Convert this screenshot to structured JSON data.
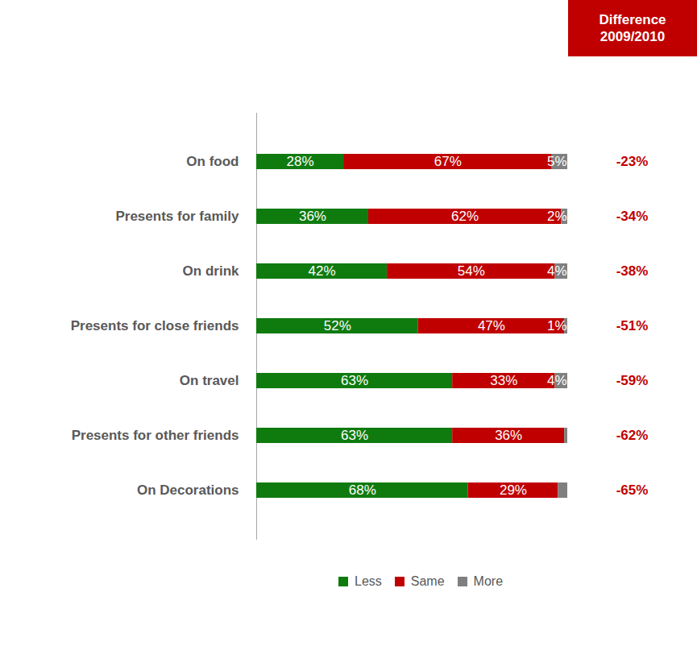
{
  "chart_data": {
    "type": "bar",
    "orientation": "horizontal",
    "stacked": true,
    "data_labels": true,
    "tick_labels": "y",
    "legend": "bottom",
    "categories": [
      "On food",
      "Presents for family",
      "On drink",
      "Presents for close friends",
      "On travel",
      "Presents for other friends",
      "On Decorations"
    ],
    "xlim": [
      0,
      100
    ],
    "series": [
      {
        "name": "Less",
        "color": "#0f7b0f",
        "values": [
          28,
          36,
          42,
          52,
          63,
          63,
          68
        ],
        "value_labels": [
          "28%",
          "36%",
          "42%",
          "52%",
          "63%",
          "63%",
          "68%"
        ]
      },
      {
        "name": "Same",
        "color": "#c00000",
        "values": [
          67,
          62,
          54,
          47,
          33,
          36,
          29
        ],
        "value_labels": [
          "67%",
          "62%",
          "54%",
          "47%",
          "33%",
          "36%",
          "29%"
        ]
      },
      {
        "name": "More",
        "color": "#7f7f7f",
        "values": [
          5,
          2,
          4,
          1,
          4,
          1,
          3
        ],
        "value_labels": [
          "5%",
          "2%",
          "4%",
          "1%",
          "4%",
          null,
          null
        ]
      }
    ],
    "difference": {
      "title": "Difference 2009/2010",
      "values": [
        -23,
        -34,
        -38,
        -51,
        -59,
        -62,
        -65
      ],
      "value_labels": [
        "-23%",
        "-34%",
        "-38%",
        "-51%",
        "-59%",
        "-62%",
        "-65%"
      ]
    }
  }
}
